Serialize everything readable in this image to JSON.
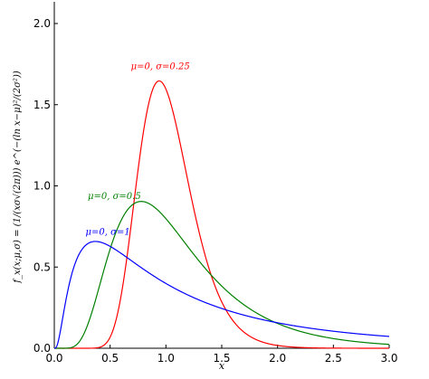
{
  "chart_data": {
    "type": "line",
    "xlabel": "x",
    "ylabel": "f_x(x;μ,σ) = (1/(xσ√(2π))) e^(−(ln x−μ)²/(2σ²))",
    "xlim": [
      0.0,
      3.0
    ],
    "ylim": [
      0.0,
      2.0
    ],
    "xticks": [
      "0.0",
      "0.5",
      "1.0",
      "1.5",
      "2.0",
      "2.5",
      "3.0"
    ],
    "yticks": [
      "0.0",
      "0.5",
      "1.0",
      "1.5",
      "2.0"
    ],
    "grid": false,
    "series": [
      {
        "name": "μ=0, σ=0.25",
        "color": "#ff0000",
        "mu": 0,
        "sigma": 0.25,
        "mode": [
          0.94,
          1.69
        ]
      },
      {
        "name": "μ=0, σ=0.5",
        "color": "#008000",
        "mu": 0,
        "sigma": 0.5,
        "mode": [
          0.78,
          0.9
        ]
      },
      {
        "name": "μ=0, σ=1",
        "color": "#0000ff",
        "mu": 0,
        "sigma": 1,
        "mode": [
          0.37,
          0.66
        ]
      }
    ],
    "annotations": [
      {
        "text": "μ=0, σ=0.25",
        "series": 0,
        "at": [
          0.95,
          1.72
        ]
      },
      {
        "text": "μ=0, σ=0.5",
        "series": 1,
        "at": [
          0.3,
          0.92
        ]
      },
      {
        "text": "μ=0, σ=1",
        "series": 2,
        "at": [
          0.28,
          0.7
        ]
      }
    ]
  }
}
